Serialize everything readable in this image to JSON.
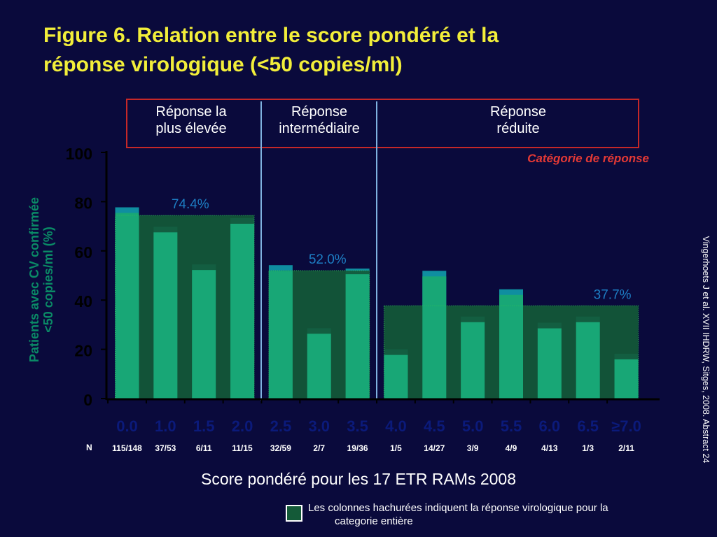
{
  "title": {
    "line1": "Figure 6. Relation entre le score pondéré et la",
    "line2": "réponse virologique (<50 copies/ml)"
  },
  "categories_header": [
    {
      "label": "Réponse la\nplus élevée"
    },
    {
      "label": "Réponse\nintermédiaire"
    },
    {
      "label": "Réponse\nréduite"
    }
  ],
  "category_caption": "Catégorie de réponse",
  "n_label": "N",
  "x_axis_title": "Score pondéré pour les 17 ETR RAMs 2008",
  "legend": {
    "line1": "Les colonnes hachurées indiquent la réponse virologique pour la",
    "line2": "categorie entière"
  },
  "citation": "Vingerhoets J et al. XVII IHDRW, Sitges, 2008. Abstract 24",
  "colors": {
    "background": "#0a0a3c",
    "bar_front": "#18a776",
    "bar_back": "#0f8ea0",
    "group_fill": "#145a38",
    "percent_label": "#1d7ec4",
    "title": "#f2ee3a",
    "frame": "#c62828"
  },
  "chart_data": {
    "type": "bar",
    "categories": [
      "0.0",
      "1.0",
      "1.5",
      "2.0",
      "2.5",
      "3.0",
      "3.5",
      "4.0",
      "4.5",
      "5.0",
      "5.5",
      "6.0",
      "6.5",
      "≥7.0"
    ],
    "values": [
      77.7,
      69.8,
      54.5,
      73.3,
      54.2,
      28.6,
      52.8,
      20.0,
      51.9,
      33.3,
      44.4,
      30.8,
      33.3,
      18.2
    ],
    "n_values": [
      "115/148",
      "37/53",
      "6/11",
      "11/15",
      "32/59",
      "2/7",
      "19/36",
      "1/5",
      "14/27",
      "3/9",
      "4/9",
      "4/13",
      "1/3",
      "2/11"
    ],
    "ylabel": "Patients avec CV confirmée\n<50 copies/ml (%)",
    "xlabel": "Score pondéré pour les 17 ETR RAMs 2008",
    "ylim": [
      0,
      100
    ],
    "yticks": [
      0,
      20,
      40,
      60,
      80,
      100
    ],
    "groups": [
      {
        "name": "Réponse la plus élevée",
        "value": 74.4,
        "label": "74.4%",
        "from": 0,
        "to": 3
      },
      {
        "name": "Réponse intermédiaire",
        "value": 52.0,
        "label": "52.0%",
        "from": 4,
        "to": 6
      },
      {
        "name": "Réponse réduite",
        "value": 37.7,
        "label": "37.7%",
        "from": 7,
        "to": 13
      }
    ],
    "grid": false
  }
}
